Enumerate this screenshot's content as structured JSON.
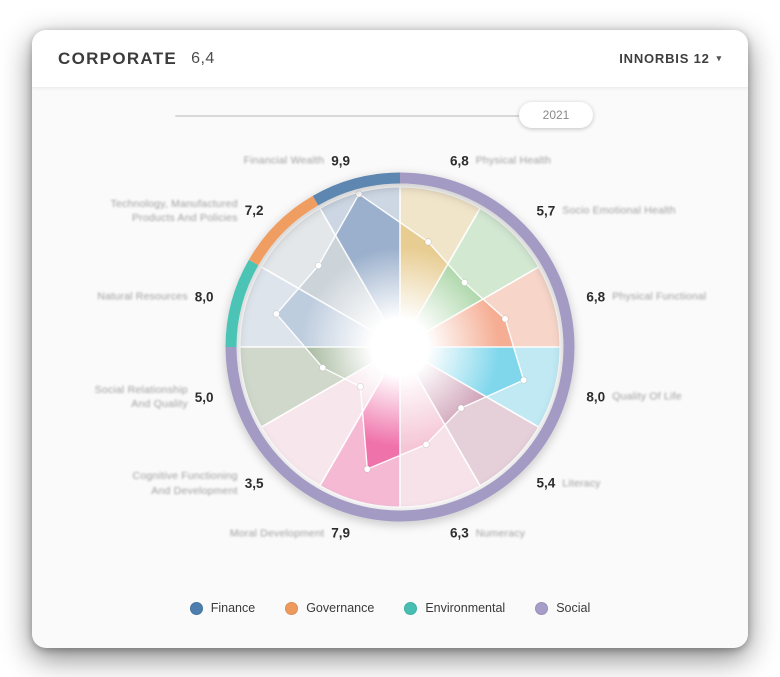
{
  "header": {
    "title": "CORPORATE",
    "score": "6,4",
    "company_selector": {
      "label": "INNORBIS 12",
      "caret": "▾"
    }
  },
  "slider": {
    "year_label": "2021"
  },
  "chart_data": {
    "type": "radar",
    "subtype": "polar-wheel",
    "scale": {
      "min": 0,
      "max": 10
    },
    "start_angle_deg": -90,
    "direction": "clockwise",
    "legend_position": "bottom",
    "categories": [
      {
        "label": "Physical Health",
        "value": 6.8,
        "display": "6,8",
        "color": "#e5c785",
        "group": "Social"
      },
      {
        "label": "Socio Emotional Health",
        "value": 5.7,
        "display": "5,7",
        "color": "#9ccf98",
        "group": "Social"
      },
      {
        "label": "Physical Functional",
        "value": 6.8,
        "display": "6,8",
        "color": "#f4a284",
        "group": "Social"
      },
      {
        "label": "Quality Of Life",
        "value": 8.0,
        "display": "8,0",
        "color": "#6fd2ea",
        "group": "Social"
      },
      {
        "label": "Literacy",
        "value": 5.4,
        "display": "5,4",
        "color": "#c793ac",
        "group": "Social"
      },
      {
        "label": "Numeracy",
        "value": 6.3,
        "display": "6,3",
        "color": "#f4c0d1",
        "group": "Social"
      },
      {
        "label": "Moral Development",
        "value": 7.9,
        "display": "7,9",
        "color": "#ee5f9f",
        "group": "Social"
      },
      {
        "label": "Cognitive Functioning And Development",
        "lines": [
          "Cognitive Functioning",
          "And Development"
        ],
        "value": 3.5,
        "display": "3,5",
        "color": "#f2cddb",
        "group": "Social"
      },
      {
        "label": "Social Relationship And Quality",
        "lines": [
          "Social Relationship",
          "And Quality"
        ],
        "value": 5.0,
        "display": "5,0",
        "color": "#93aa89",
        "group": "Social"
      },
      {
        "label": "Natural Resources",
        "value": 8.0,
        "display": "8,0",
        "color": "#b6c6da",
        "group": "Environmental"
      },
      {
        "label": "Technology, Manufactured Products And Policies",
        "lines": [
          "Technology, Manufactured",
          "Products And Policies"
        ],
        "value": 7.2,
        "display": "7,2",
        "color": "#c5ced5",
        "group": "Governance"
      },
      {
        "label": "Financial Wealth",
        "value": 9.9,
        "display": "9,9",
        "color": "#8ea6c6",
        "group": "Finance"
      }
    ],
    "groups": {
      "Finance": "#5d87b0",
      "Governance": "#f09d62",
      "Environmental": "#4cc3b5",
      "Social": "#a49bc4"
    }
  },
  "legend": {
    "items": [
      {
        "label": "Finance",
        "color": "#4d7eae"
      },
      {
        "label": "Governance",
        "color": "#ef9a5d"
      },
      {
        "label": "Environmental",
        "color": "#46bfb2"
      },
      {
        "label": "Social",
        "color": "#a79dc9"
      }
    ]
  }
}
